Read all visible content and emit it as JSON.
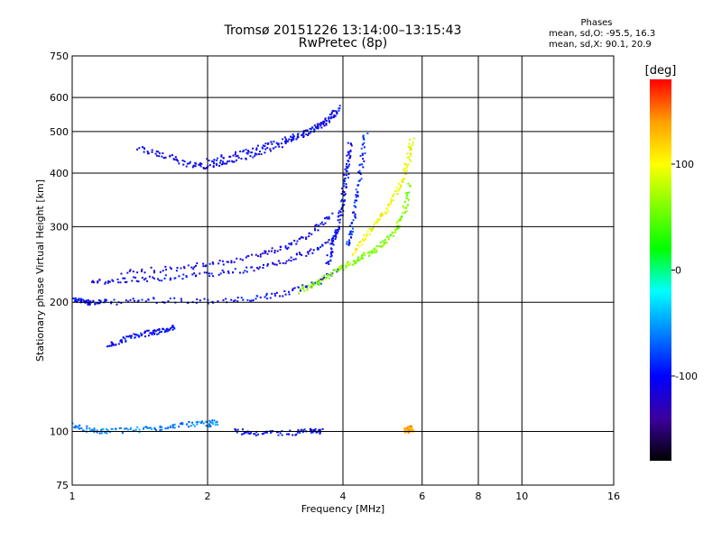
{
  "chart_data": {
    "type": "scatter",
    "title": "Tromsø 20151226 13:14:00–13:15:43",
    "subtitle": "RwPretec (8p)",
    "xlabel": "Frequency [MHz]",
    "ylabel": "Stationary phase Virtual Height [km]",
    "x_scale": "log",
    "y_scale": "log",
    "xlim": [
      1,
      16
    ],
    "ylim": [
      75,
      750
    ],
    "x_ticks": [
      "1",
      "2",
      "4",
      "6",
      "8",
      "10",
      "16"
    ],
    "y_ticks": [
      "75",
      "100",
      "200",
      "300",
      "400",
      "500",
      "600",
      "750"
    ],
    "x_tick_values": [
      1,
      2,
      4,
      6,
      8,
      10,
      16
    ],
    "y_tick_values": [
      75,
      100,
      200,
      300,
      400,
      500,
      600,
      750
    ],
    "x_gridlines": [
      2,
      4,
      6,
      8,
      10
    ],
    "y_gridlines": [
      100,
      200,
      300,
      400,
      500,
      600
    ],
    "grid": true,
    "phase_info": {
      "title": "Phases",
      "line_o": "mean, sd,O: -95.5, 16.3",
      "line_x": "mean, sd,X:  90.1, 20.9"
    },
    "colorbar": {
      "label": "[deg]",
      "ticks": [
        "100",
        "0",
        "-100"
      ],
      "tick_values": [
        100,
        0,
        -100
      ],
      "range": [
        -180,
        180
      ],
      "colors": [
        "#000000",
        "#3c00a0",
        "#0000ff",
        "#0080ff",
        "#00ffff",
        "#00ff00",
        "#80ff00",
        "#ffff00",
        "#ffa000",
        "#ff0000"
      ]
    },
    "traces": [
      {
        "x": [
          1.0,
          1.05,
          1.1,
          1.2,
          1.5,
          2.0,
          2.5,
          3.0,
          3.5,
          3.9
        ],
        "y": [
          203,
          201,
          200,
          200,
          202,
          201,
          203,
          210,
          222,
          240
        ],
        "phase": -100
      },
      {
        "x": [
          1.1,
          1.3,
          1.6,
          2.0,
          2.5,
          3.0,
          3.5,
          3.9
        ],
        "y": [
          222,
          225,
          228,
          232,
          238,
          250,
          265,
          285
        ],
        "phase": -105
      },
      {
        "x": [
          1.3,
          1.7,
          2.1,
          2.6,
          3.0,
          3.4,
          3.8
        ],
        "y": [
          235,
          240,
          246,
          258,
          270,
          290,
          320
        ],
        "phase": -108
      },
      {
        "x": [
          1.4,
          1.6,
          1.8,
          2.0,
          2.2,
          2.6,
          3.0,
          3.3,
          3.6,
          3.9
        ],
        "y": [
          455,
          440,
          420,
          415,
          425,
          445,
          470,
          495,
          520,
          560
        ],
        "phase": -105
      },
      {
        "x": [
          2.0,
          2.4,
          2.8,
          3.2,
          3.6,
          4.0
        ],
        "y": [
          430,
          445,
          470,
          490,
          520,
          570
        ],
        "phase": -100
      },
      {
        "x": [
          3.7,
          3.8,
          3.9,
          4.0,
          4.05,
          4.1,
          4.15
        ],
        "y": [
          245,
          275,
          300,
          340,
          380,
          420,
          470
        ],
        "phase": -100
      },
      {
        "x": [
          3.2,
          3.5,
          3.8,
          4.1,
          4.4,
          4.7,
          5.0,
          5.3,
          5.5,
          5.6
        ],
        "y": [
          212,
          222,
          235,
          245,
          255,
          265,
          280,
          300,
          330,
          380
        ],
        "phase": 60
      },
      {
        "x": [
          4.2,
          4.5,
          4.8,
          5.1,
          5.4,
          5.6,
          5.7
        ],
        "y": [
          260,
          285,
          310,
          340,
          380,
          430,
          480
        ],
        "phase": 100
      },
      {
        "x": [
          4.1,
          4.2,
          4.3,
          4.4,
          4.5
        ],
        "y": [
          270,
          300,
          350,
          420,
          500
        ],
        "phase": -90
      },
      {
        "x": [
          1.2,
          1.3,
          1.4,
          1.5,
          1.6,
          1.7
        ],
        "y": [
          158,
          163,
          168,
          170,
          172,
          175
        ],
        "phase": -100
      },
      {
        "x": [
          1.0,
          1.1,
          1.2,
          1.4,
          1.6,
          1.8,
          2.0,
          2.1
        ],
        "y": [
          103,
          101,
          100,
          101,
          102,
          104,
          104,
          105
        ],
        "phase": -60
      },
      {
        "x": [
          2.3,
          2.6,
          3.0,
          3.4,
          3.6
        ],
        "y": [
          100,
          99,
          99,
          100,
          100
        ],
        "phase": -100
      },
      {
        "x": [
          5.5,
          5.6,
          5.7
        ],
        "y": [
          100,
          102,
          101
        ],
        "phase": 140
      }
    ]
  }
}
